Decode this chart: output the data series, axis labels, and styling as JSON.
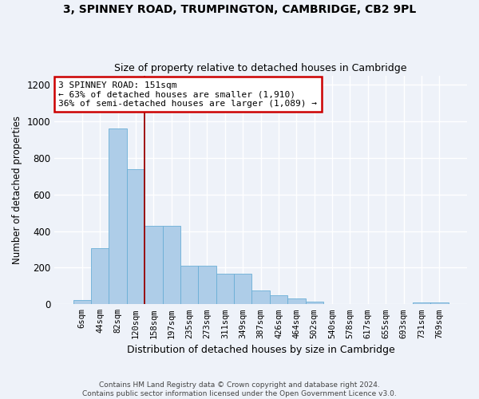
{
  "title1": "3, SPINNEY ROAD, TRUMPINGTON, CAMBRIDGE, CB2 9PL",
  "title2": "Size of property relative to detached houses in Cambridge",
  "xlabel": "Distribution of detached houses by size in Cambridge",
  "ylabel": "Number of detached properties",
  "categories": [
    "6sqm",
    "44sqm",
    "82sqm",
    "120sqm",
    "158sqm",
    "197sqm",
    "235sqm",
    "273sqm",
    "311sqm",
    "349sqm",
    "387sqm",
    "426sqm",
    "464sqm",
    "502sqm",
    "540sqm",
    "578sqm",
    "617sqm",
    "655sqm",
    "693sqm",
    "731sqm",
    "769sqm"
  ],
  "bar_heights": [
    25,
    305,
    960,
    740,
    430,
    430,
    210,
    210,
    165,
    165,
    75,
    50,
    30,
    15,
    0,
    0,
    0,
    0,
    0,
    10,
    12
  ],
  "bar_color": "#aecde8",
  "bar_edgecolor": "#6aaed6",
  "annotation_text": "3 SPINNEY ROAD: 151sqm\n← 63% of detached houses are smaller (1,910)\n36% of semi-detached houses are larger (1,089) →",
  "annotation_box_facecolor": "#ffffff",
  "annotation_box_edgecolor": "#cc0000",
  "vline_x": 3.5,
  "ylim": [
    0,
    1250
  ],
  "yticks": [
    0,
    200,
    400,
    600,
    800,
    1000,
    1200
  ],
  "footer1": "Contains HM Land Registry data © Crown copyright and database right 2024.",
  "footer2": "Contains public sector information licensed under the Open Government Licence v3.0.",
  "bg_color": "#eef2f9",
  "grid_color": "#ffffff"
}
